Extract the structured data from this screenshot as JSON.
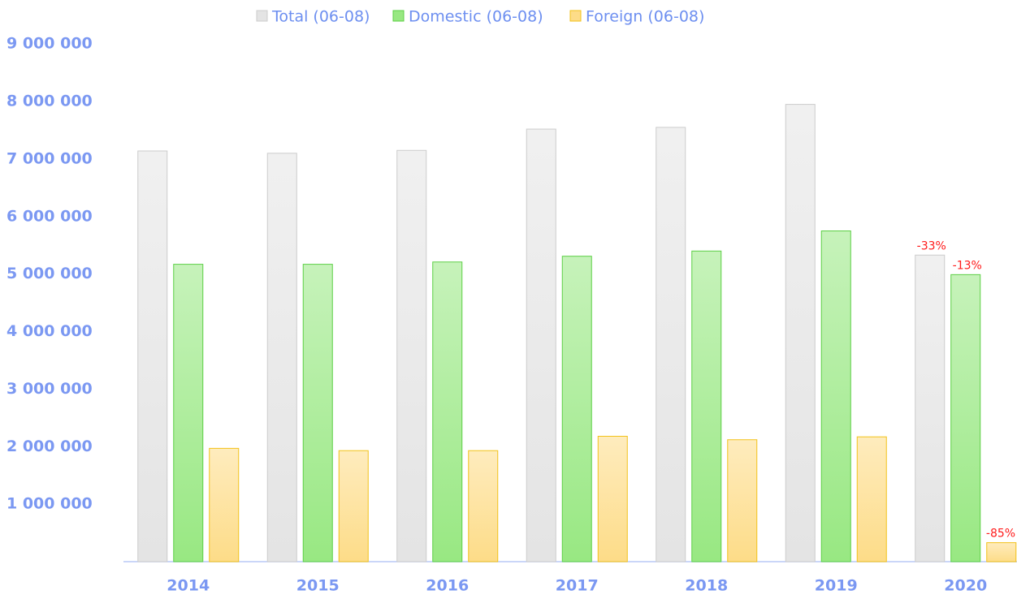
{
  "chart_data": {
    "type": "bar",
    "categories": [
      "2014",
      "2015",
      "2016",
      "2017",
      "2018",
      "2019",
      "2020"
    ],
    "series": [
      {
        "name": "Total (06-08)",
        "color": "#e4e4e4",
        "edgecolor": "#cccccc",
        "values": [
          7140000,
          7100000,
          7150000,
          7520000,
          7550000,
          7950000,
          5330000
        ]
      },
      {
        "name": "Domestic (06-08)",
        "color": "#98e882",
        "edgecolor": "#5ccf45",
        "values": [
          5170000,
          5170000,
          5210000,
          5310000,
          5400000,
          5750000,
          4990000
        ]
      },
      {
        "name": "Foreign (06-08)",
        "color": "#fddc88",
        "edgecolor": "#f2c21a",
        "values": [
          1970000,
          1930000,
          1930000,
          2180000,
          2120000,
          2170000,
          330000
        ]
      }
    ],
    "annotations": [
      {
        "text": "-33%",
        "category": "2020",
        "series": "Total (06-08)"
      },
      {
        "text": "-13%",
        "category": "2020",
        "series": "Domestic (06-08)"
      },
      {
        "text": "-85%",
        "category": "2020",
        "series": "Foreign (06-08)"
      }
    ],
    "ylim": [
      0,
      9200000
    ],
    "yticks": [
      {
        "value": 1000000,
        "label": "1 000 000"
      },
      {
        "value": 2000000,
        "label": "2 000 000"
      },
      {
        "value": 3000000,
        "label": "3 000 000"
      },
      {
        "value": 4000000,
        "label": "4 000 000"
      },
      {
        "value": 5000000,
        "label": "5 000 000"
      },
      {
        "value": 6000000,
        "label": "6 000 000"
      },
      {
        "value": 7000000,
        "label": "7 000 000"
      },
      {
        "value": 8000000,
        "label": "8 000 000"
      },
      {
        "value": 9000000,
        "label": "9 000 000"
      }
    ],
    "grid": false,
    "legend": "top",
    "annotation_color": "#ff1a1a"
  }
}
